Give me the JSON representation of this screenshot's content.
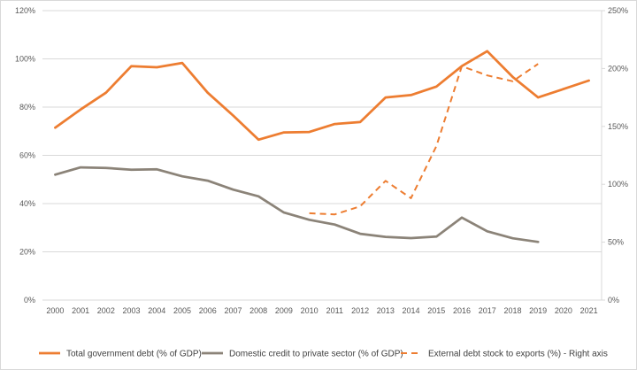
{
  "chart_data": {
    "type": "line",
    "title": "",
    "xlabel": "",
    "ylabel": "",
    "x": [
      "2000",
      "2001",
      "2002",
      "2003",
      "2004",
      "2005",
      "2006",
      "2007",
      "2008",
      "2009",
      "2010",
      "2011",
      "2012",
      "2013",
      "2014",
      "2015",
      "2016",
      "2017",
      "2018",
      "2019",
      "2020",
      "2021"
    ],
    "y_left": {
      "ylim": [
        0,
        120
      ],
      "ticks": [
        0,
        20,
        40,
        60,
        80,
        100,
        120
      ],
      "tick_labels": [
        "0%",
        "20%",
        "40%",
        "60%",
        "80%",
        "100%",
        "120%"
      ]
    },
    "y_right": {
      "ylim": [
        0,
        250
      ],
      "ticks": [
        0,
        50,
        100,
        150,
        200,
        250
      ],
      "tick_labels": [
        "0%",
        "50%",
        "100%",
        "150%",
        "200%",
        "250%"
      ]
    },
    "grid": "horizontal",
    "legend_position": "bottom",
    "series": [
      {
        "name": "Total government debt (% of GDP)",
        "axis": "left",
        "color": "#ed7d31",
        "style": "solid",
        "values": [
          71.5,
          79,
          86,
          97,
          96.5,
          98.3,
          86,
          76.5,
          66.5,
          69.5,
          69.7,
          73,
          73.8,
          84,
          85,
          88.5,
          97,
          103.2,
          92.5,
          84,
          87.5,
          91
        ]
      },
      {
        "name": "Domestic credit to private sector (% of GDP)",
        "axis": "left",
        "color": "#8b8378",
        "style": "solid",
        "values": [
          52,
          55,
          54.8,
          54,
          54.2,
          51.3,
          49.5,
          45.8,
          43,
          36.3,
          33.3,
          31.3,
          27.5,
          26.2,
          25.7,
          26.3,
          34.2,
          28.5,
          25.6,
          24.1,
          null,
          null
        ]
      },
      {
        "name": "External debt stock to exports (%) - Right axis",
        "axis": "right",
        "color": "#ed7d31",
        "style": "dashed",
        "values": [
          null,
          null,
          null,
          null,
          null,
          null,
          null,
          null,
          null,
          null,
          75,
          74,
          81,
          103,
          88,
          133,
          202,
          194,
          189,
          204,
          null,
          null
        ]
      }
    ]
  }
}
